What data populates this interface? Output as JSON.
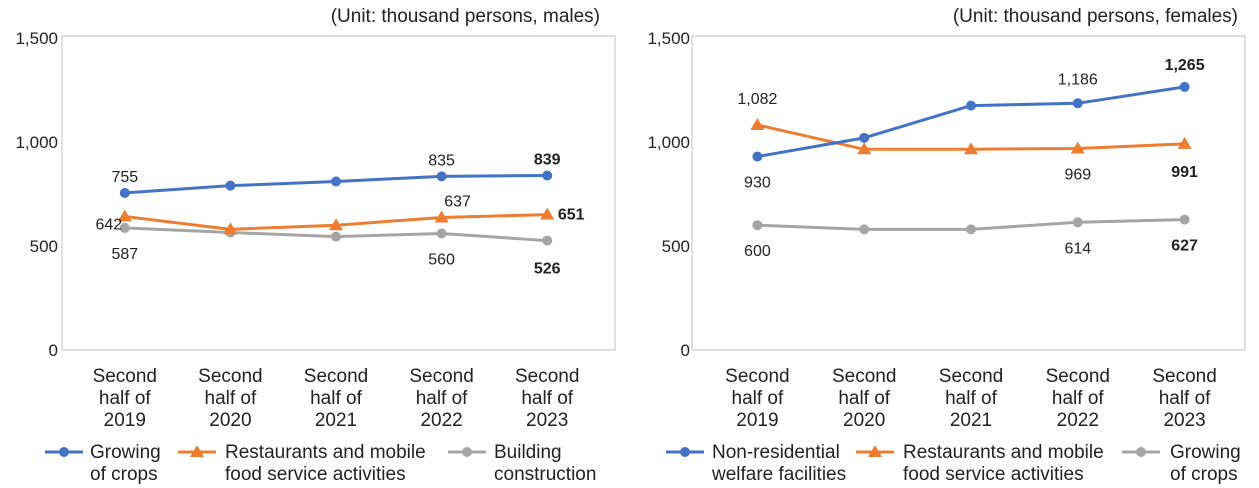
{
  "chart_data": [
    {
      "type": "line",
      "unit_note": "(Unit: thousand persons, males)",
      "categories": [
        [
          "Second",
          "half of",
          "2019"
        ],
        [
          "Second",
          "half of",
          "2020"
        ],
        [
          "Second",
          "half of",
          "2021"
        ],
        [
          "Second",
          "half of",
          "2022"
        ],
        [
          "Second",
          "half of",
          "2023"
        ]
      ],
      "ylim": [
        0,
        1500
      ],
      "yticks": [
        0,
        500,
        1000,
        1500
      ],
      "ytick_labels": [
        "0",
        "500",
        "1,000",
        "1,500"
      ],
      "legend_position": "bottom",
      "series": [
        {
          "name": [
            "Growing",
            "of crops"
          ],
          "color": "#4472C4",
          "marker": "circle",
          "values": [
            755,
            790,
            810,
            835,
            839
          ],
          "labels": [
            "755",
            "",
            "",
            "835",
            "839"
          ],
          "bold": [
            false,
            false,
            false,
            false,
            true
          ]
        },
        {
          "name": [
            "Restaurants and mobile",
            "food service activities"
          ],
          "color": "#ED7D31",
          "marker": "triangle",
          "values": [
            642,
            580,
            600,
            637,
            651
          ],
          "labels": [
            "642",
            "",
            "",
            "637",
            "651"
          ],
          "bold": [
            false,
            false,
            false,
            false,
            true
          ]
        },
        {
          "name": [
            "Building",
            "construction"
          ],
          "color": "#A5A5A5",
          "marker": "circle",
          "values": [
            587,
            565,
            545,
            560,
            526
          ],
          "labels": [
            "587",
            "",
            "",
            "560",
            "526"
          ],
          "bold": [
            false,
            false,
            false,
            false,
            true
          ]
        }
      ]
    },
    {
      "type": "line",
      "unit_note": "(Unit: thousand persons, females)",
      "categories": [
        [
          "Second",
          "half of",
          "2019"
        ],
        [
          "Second",
          "half of",
          "2020"
        ],
        [
          "Second",
          "half of",
          "2021"
        ],
        [
          "Second",
          "half of",
          "2022"
        ],
        [
          "Second",
          "half of",
          "2023"
        ]
      ],
      "ylim": [
        0,
        1500
      ],
      "yticks": [
        0,
        500,
        1000,
        1500
      ],
      "ytick_labels": [
        "0",
        "500",
        "1,000",
        "1,500"
      ],
      "legend_position": "bottom",
      "series": [
        {
          "name": [
            "Non-residential",
            "welfare facilities"
          ],
          "color": "#4472C4",
          "marker": "circle",
          "values": [
            930,
            1020,
            1175,
            1186,
            1265
          ],
          "labels": [
            "930",
            "",
            "",
            "1,186",
            "1,265"
          ],
          "bold": [
            false,
            false,
            false,
            false,
            true
          ]
        },
        {
          "name": [
            "Restaurants and mobile",
            "food service activities"
          ],
          "color": "#ED7D31",
          "marker": "triangle",
          "values": [
            1082,
            965,
            965,
            969,
            991
          ],
          "labels": [
            "1,082",
            "",
            "",
            "969",
            "991"
          ],
          "bold": [
            false,
            false,
            false,
            false,
            true
          ]
        },
        {
          "name": [
            "Growing",
            "of crops"
          ],
          "color": "#A5A5A5",
          "marker": "circle",
          "values": [
            600,
            580,
            580,
            614,
            627
          ],
          "labels": [
            "600",
            "",
            "",
            "614",
            "627"
          ],
          "bold": [
            false,
            false,
            false,
            false,
            true
          ]
        }
      ]
    }
  ]
}
